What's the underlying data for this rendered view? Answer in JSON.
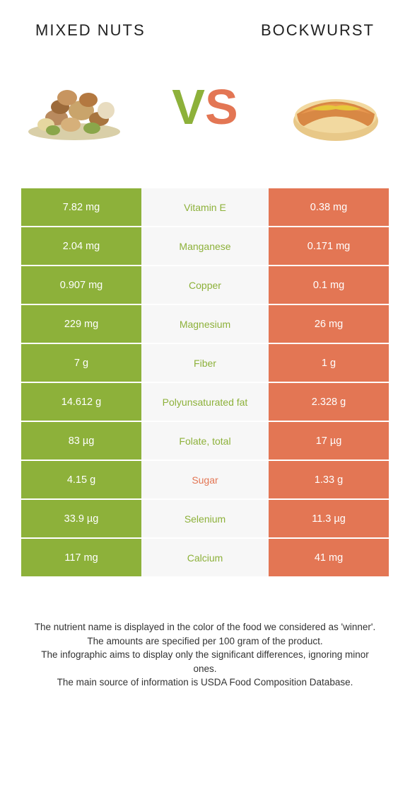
{
  "header": {
    "left": "MIXED NUTS",
    "right": "BOCKWURST"
  },
  "vs": {
    "v": "V",
    "s": "S"
  },
  "colors": {
    "left_bg": "#8db13a",
    "right_bg": "#e37654",
    "mid_bg": "#f7f7f7",
    "winner_left_text": "#8db13a",
    "winner_right_text": "#e37654"
  },
  "rows": [
    {
      "left": "7.82 mg",
      "label": "Vitamin E",
      "right": "0.38 mg",
      "winner": "left"
    },
    {
      "left": "2.04 mg",
      "label": "Manganese",
      "right": "0.171 mg",
      "winner": "left"
    },
    {
      "left": "0.907 mg",
      "label": "Copper",
      "right": "0.1 mg",
      "winner": "left"
    },
    {
      "left": "229 mg",
      "label": "Magnesium",
      "right": "26 mg",
      "winner": "left"
    },
    {
      "left": "7 g",
      "label": "Fiber",
      "right": "1 g",
      "winner": "left"
    },
    {
      "left": "14.612 g",
      "label": "Polyunsaturated fat",
      "right": "2.328 g",
      "winner": "left"
    },
    {
      "left": "83 µg",
      "label": "Folate, total",
      "right": "17 µg",
      "winner": "left"
    },
    {
      "left": "4.15 g",
      "label": "Sugar",
      "right": "1.33 g",
      "winner": "right"
    },
    {
      "left": "33.9 µg",
      "label": "Selenium",
      "right": "11.3 µg",
      "winner": "left"
    },
    {
      "left": "117 mg",
      "label": "Calcium",
      "right": "41 mg",
      "winner": "left"
    }
  ],
  "footer": {
    "line1": "The nutrient name is displayed in the color of the food we considered as 'winner'.",
    "line2": "The amounts are specified per 100 gram of the product.",
    "line3": "The infographic aims to display only the significant differences, ignoring minor ones.",
    "line4": "The main source of information is USDA Food Composition Database."
  }
}
